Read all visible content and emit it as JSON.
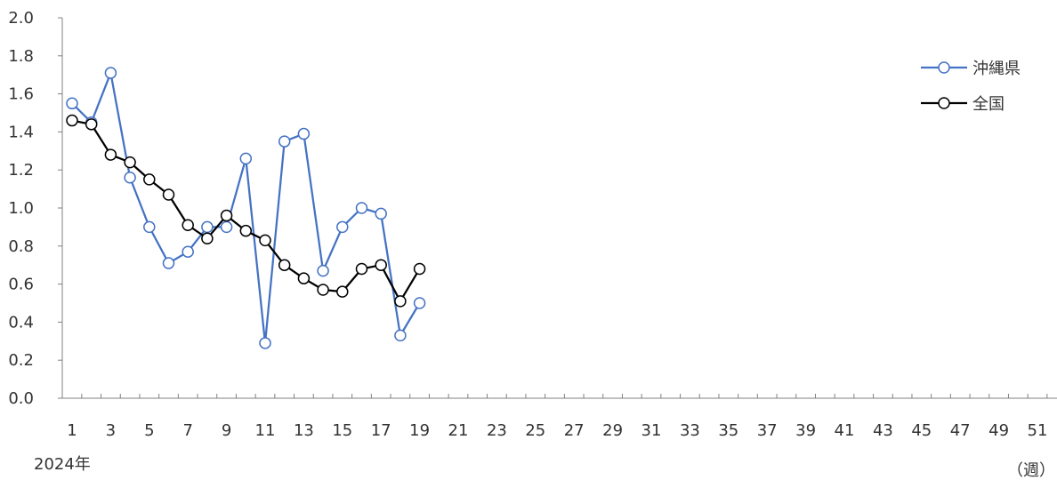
{
  "chart_data": {
    "type": "line",
    "x": [
      1,
      2,
      3,
      4,
      5,
      6,
      7,
      8,
      9,
      10,
      11,
      12,
      13,
      14,
      15,
      16,
      17,
      18,
      19
    ],
    "x_tick_labels": [
      "1",
      "3",
      "5",
      "7",
      "9",
      "11",
      "13",
      "15",
      "17",
      "19",
      "21",
      "23",
      "25",
      "27",
      "29",
      "31",
      "33",
      "35",
      "37",
      "39",
      "41",
      "43",
      "45",
      "47",
      "49",
      "51"
    ],
    "y_tick_labels": [
      "0.0",
      "0.2",
      "0.4",
      "0.6",
      "0.8",
      "1.0",
      "1.2",
      "1.4",
      "1.6",
      "1.8",
      "2.0"
    ],
    "xlim": [
      1,
      52
    ],
    "ylim": [
      0,
      2.0
    ],
    "year_label": "2024年",
    "unit_label": "（週）",
    "grid": false,
    "legend_position": "top-right",
    "series": [
      {
        "name": "沖縄県",
        "color": "#4472C4",
        "values": [
          1.55,
          1.45,
          1.71,
          1.16,
          0.9,
          0.71,
          0.77,
          0.9,
          0.9,
          1.26,
          0.29,
          1.35,
          1.39,
          0.67,
          0.9,
          1.0,
          0.97,
          0.33,
          0.5
        ]
      },
      {
        "name": "全国",
        "color": "#000000",
        "values": [
          1.46,
          1.44,
          1.28,
          1.24,
          1.15,
          1.07,
          0.91,
          0.84,
          0.96,
          0.88,
          0.83,
          0.7,
          0.63,
          0.57,
          0.56,
          0.68,
          0.7,
          0.51,
          0.68
        ]
      }
    ]
  }
}
